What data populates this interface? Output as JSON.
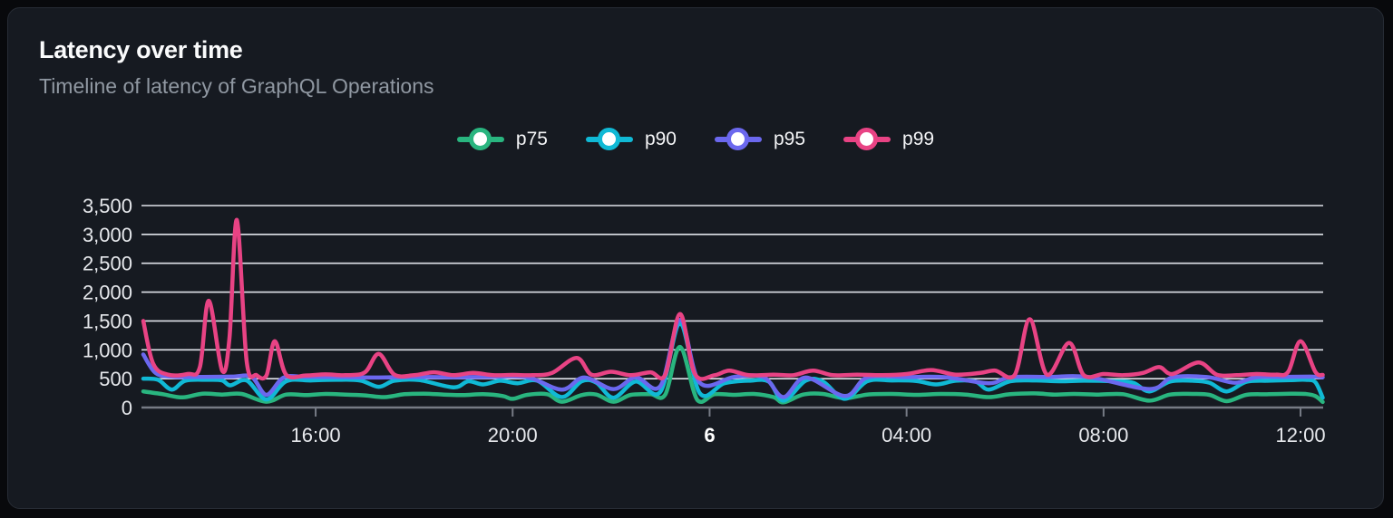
{
  "card": {
    "title": "Latency over time",
    "subtitle": "Timeline of latency of GraphQL Operations"
  },
  "chart_data": {
    "type": "line",
    "title": "Latency over time",
    "subtitle": "Timeline of latency of GraphQL Operations",
    "x_axis": "time of day over a 24h window (starts ~12:30, day boundary labeled 6)",
    "ylim": [
      0,
      3500
    ],
    "y_ticks": [
      0,
      500,
      1000,
      1500,
      2000,
      2500,
      3000,
      3500
    ],
    "y_tick_labels": [
      "0",
      "500",
      "1,000",
      "1,500",
      "2,000",
      "2,500",
      "3,000",
      "3,500"
    ],
    "x_ticks": [
      {
        "t": 3.5,
        "label": "16:00",
        "bold": false
      },
      {
        "t": 7.5,
        "label": "20:00",
        "bold": false
      },
      {
        "t": 11.5,
        "label": "6",
        "bold": true
      },
      {
        "t": 15.5,
        "label": "04:00",
        "bold": false
      },
      {
        "t": 19.5,
        "label": "08:00",
        "bold": false
      },
      {
        "t": 23.5,
        "label": "12:00",
        "bold": false
      }
    ],
    "grid": "horizontal gridlines on",
    "legend_position": "top-center",
    "grid_color": "#e0e3ea",
    "axis_color": "#767b85",
    "tick_label_color": "#e6e8ec",
    "series": [
      {
        "name": "p75",
        "color": "#29b57f",
        "points": [
          [
            0,
            280
          ],
          [
            0.4,
            230
          ],
          [
            0.8,
            175
          ],
          [
            1.2,
            240
          ],
          [
            1.6,
            225
          ],
          [
            2.0,
            235
          ],
          [
            2.5,
            100
          ],
          [
            2.9,
            225
          ],
          [
            3.3,
            215
          ],
          [
            3.7,
            235
          ],
          [
            4.1,
            225
          ],
          [
            4.5,
            210
          ],
          [
            4.9,
            180
          ],
          [
            5.3,
            230
          ],
          [
            5.7,
            240
          ],
          [
            6.1,
            225
          ],
          [
            6.5,
            215
          ],
          [
            6.9,
            230
          ],
          [
            7.3,
            200
          ],
          [
            7.5,
            150
          ],
          [
            7.8,
            220
          ],
          [
            8.2,
            230
          ],
          [
            8.5,
            100
          ],
          [
            8.9,
            215
          ],
          [
            9.2,
            225
          ],
          [
            9.55,
            100
          ],
          [
            9.9,
            220
          ],
          [
            10.3,
            230
          ],
          [
            10.6,
            225
          ],
          [
            10.9,
            1050
          ],
          [
            11.25,
            130
          ],
          [
            11.6,
            230
          ],
          [
            12.0,
            220
          ],
          [
            12.4,
            235
          ],
          [
            12.8,
            180
          ],
          [
            13.0,
            90
          ],
          [
            13.4,
            225
          ],
          [
            13.8,
            235
          ],
          [
            14.25,
            160
          ],
          [
            14.7,
            225
          ],
          [
            15.2,
            235
          ],
          [
            15.7,
            220
          ],
          [
            16.2,
            235
          ],
          [
            16.7,
            225
          ],
          [
            17.17,
            180
          ],
          [
            17.6,
            230
          ],
          [
            18.1,
            245
          ],
          [
            18.5,
            225
          ],
          [
            18.9,
            235
          ],
          [
            19.4,
            225
          ],
          [
            19.9,
            230
          ],
          [
            20.43,
            120
          ],
          [
            20.85,
            225
          ],
          [
            21.3,
            235
          ],
          [
            21.65,
            220
          ],
          [
            22.0,
            110
          ],
          [
            22.4,
            220
          ],
          [
            22.85,
            230
          ],
          [
            23.3,
            240
          ],
          [
            23.6,
            235
          ],
          [
            23.8,
            200
          ],
          [
            23.95,
            95
          ]
        ]
      },
      {
        "name": "p90",
        "color": "#10b9d5",
        "points": [
          [
            0,
            500
          ],
          [
            0.3,
            480
          ],
          [
            0.58,
            310
          ],
          [
            0.85,
            465
          ],
          [
            1.3,
            480
          ],
          [
            1.6,
            470
          ],
          [
            1.77,
            385
          ],
          [
            2.1,
            470
          ],
          [
            2.5,
            140
          ],
          [
            2.9,
            455
          ],
          [
            3.4,
            470
          ],
          [
            3.9,
            480
          ],
          [
            4.4,
            470
          ],
          [
            4.78,
            360
          ],
          [
            5.1,
            465
          ],
          [
            5.6,
            475
          ],
          [
            6.3,
            350
          ],
          [
            6.6,
            455
          ],
          [
            6.9,
            400
          ],
          [
            7.25,
            465
          ],
          [
            7.6,
            420
          ],
          [
            8.0,
            465
          ],
          [
            8.5,
            180
          ],
          [
            8.9,
            455
          ],
          [
            9.2,
            430
          ],
          [
            9.55,
            170
          ],
          [
            10.0,
            450
          ],
          [
            10.5,
            270
          ],
          [
            10.9,
            1450
          ],
          [
            11.3,
            250
          ],
          [
            11.8,
            420
          ],
          [
            12.3,
            465
          ],
          [
            12.7,
            450
          ],
          [
            13.0,
            120
          ],
          [
            13.45,
            465
          ],
          [
            13.8,
            450
          ],
          [
            14.25,
            150
          ],
          [
            14.7,
            455
          ],
          [
            15.2,
            470
          ],
          [
            15.7,
            460
          ],
          [
            16.1,
            400
          ],
          [
            16.5,
            465
          ],
          [
            16.9,
            450
          ],
          [
            17.17,
            310
          ],
          [
            17.6,
            455
          ],
          [
            18.1,
            470
          ],
          [
            18.6,
            455
          ],
          [
            19.1,
            465
          ],
          [
            19.7,
            455
          ],
          [
            20.1,
            430
          ],
          [
            20.43,
            280
          ],
          [
            20.85,
            450
          ],
          [
            21.3,
            465
          ],
          [
            21.65,
            430
          ],
          [
            22.0,
            280
          ],
          [
            22.4,
            445
          ],
          [
            22.85,
            465
          ],
          [
            23.3,
            475
          ],
          [
            23.6,
            480
          ],
          [
            23.8,
            440
          ],
          [
            23.95,
            170
          ]
        ]
      },
      {
        "name": "p95",
        "color": "#6b68ee",
        "points": [
          [
            0,
            920
          ],
          [
            0.25,
            600
          ],
          [
            0.6,
            535
          ],
          [
            1.2,
            530
          ],
          [
            1.8,
            535
          ],
          [
            2.2,
            530
          ],
          [
            2.5,
            220
          ],
          [
            2.85,
            520
          ],
          [
            3.3,
            530
          ],
          [
            4.0,
            528
          ],
          [
            4.78,
            520
          ],
          [
            5.5,
            530
          ],
          [
            6.3,
            525
          ],
          [
            7.0,
            530
          ],
          [
            7.8,
            525
          ],
          [
            8.5,
            310
          ],
          [
            8.95,
            520
          ],
          [
            9.55,
            320
          ],
          [
            10.0,
            525
          ],
          [
            10.5,
            370
          ],
          [
            10.9,
            1520
          ],
          [
            11.3,
            430
          ],
          [
            12.0,
            530
          ],
          [
            12.6,
            525
          ],
          [
            13.0,
            180
          ],
          [
            13.45,
            520
          ],
          [
            14.25,
            200
          ],
          [
            14.7,
            520
          ],
          [
            15.5,
            528
          ],
          [
            16.3,
            525
          ],
          [
            17.17,
            420
          ],
          [
            17.6,
            525
          ],
          [
            18.4,
            530
          ],
          [
            19.2,
            528
          ],
          [
            20.43,
            320
          ],
          [
            20.9,
            522
          ],
          [
            21.6,
            528
          ],
          [
            22.17,
            430
          ],
          [
            22.6,
            525
          ],
          [
            23.2,
            530
          ],
          [
            23.7,
            535
          ],
          [
            23.95,
            525
          ]
        ]
      },
      {
        "name": "p99",
        "color": "#e84384",
        "points": [
          [
            0,
            1500
          ],
          [
            0.2,
            760
          ],
          [
            0.5,
            570
          ],
          [
            0.9,
            580
          ],
          [
            1.15,
            700
          ],
          [
            1.33,
            1850
          ],
          [
            1.6,
            640
          ],
          [
            1.75,
            1200
          ],
          [
            1.9,
            3250
          ],
          [
            2.1,
            800
          ],
          [
            2.3,
            560
          ],
          [
            2.5,
            555
          ],
          [
            2.67,
            1150
          ],
          [
            2.9,
            570
          ],
          [
            3.3,
            555
          ],
          [
            3.7,
            575
          ],
          [
            4.1,
            560
          ],
          [
            4.5,
            610
          ],
          [
            4.78,
            930
          ],
          [
            5.1,
            570
          ],
          [
            5.5,
            560
          ],
          [
            5.9,
            610
          ],
          [
            6.3,
            560
          ],
          [
            6.7,
            600
          ],
          [
            7.1,
            560
          ],
          [
            7.5,
            565
          ],
          [
            7.9,
            560
          ],
          [
            8.3,
            600
          ],
          [
            8.8,
            860
          ],
          [
            9.1,
            570
          ],
          [
            9.5,
            620
          ],
          [
            9.9,
            560
          ],
          [
            10.3,
            610
          ],
          [
            10.6,
            570
          ],
          [
            10.9,
            1620
          ],
          [
            11.2,
            580
          ],
          [
            11.6,
            560
          ],
          [
            11.9,
            640
          ],
          [
            12.3,
            560
          ],
          [
            12.8,
            570
          ],
          [
            13.2,
            560
          ],
          [
            13.6,
            640
          ],
          [
            14.0,
            560
          ],
          [
            14.5,
            570
          ],
          [
            15.0,
            560
          ],
          [
            15.5,
            580
          ],
          [
            16.0,
            650
          ],
          [
            16.5,
            570
          ],
          [
            17.0,
            600
          ],
          [
            17.3,
            640
          ],
          [
            17.7,
            570
          ],
          [
            18.0,
            1530
          ],
          [
            18.35,
            570
          ],
          [
            18.8,
            1120
          ],
          [
            19.1,
            560
          ],
          [
            19.5,
            580
          ],
          [
            19.9,
            560
          ],
          [
            20.3,
            600
          ],
          [
            20.63,
            700
          ],
          [
            20.9,
            580
          ],
          [
            21.43,
            780
          ],
          [
            21.8,
            570
          ],
          [
            22.2,
            560
          ],
          [
            22.6,
            580
          ],
          [
            23.0,
            570
          ],
          [
            23.25,
            620
          ],
          [
            23.5,
            1150
          ],
          [
            23.8,
            620
          ],
          [
            23.95,
            565
          ]
        ]
      }
    ]
  }
}
